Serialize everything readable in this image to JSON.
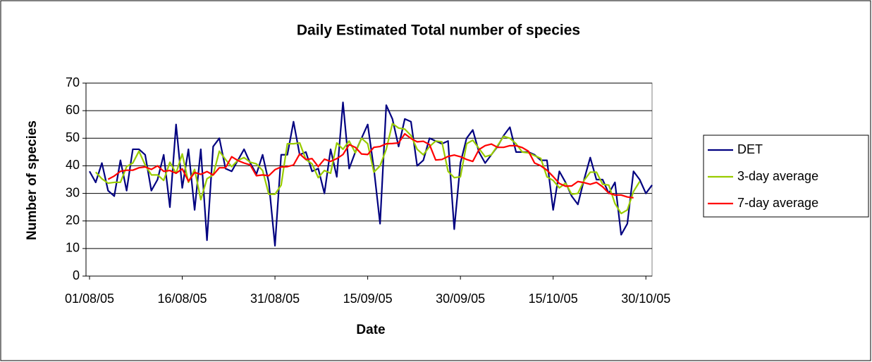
{
  "chart_data": {
    "type": "line",
    "title": "Daily Estimated Total number of species",
    "x_label": "Date",
    "y_label": "Number of species",
    "x": [
      "01/08/05",
      "02/08/05",
      "03/08/05",
      "04/08/05",
      "05/08/05",
      "06/08/05",
      "07/08/05",
      "08/08/05",
      "09/08/05",
      "10/08/05",
      "11/08/05",
      "12/08/05",
      "13/08/05",
      "14/08/05",
      "15/08/05",
      "16/08/05",
      "17/08/05",
      "18/08/05",
      "19/08/05",
      "20/08/05",
      "21/08/05",
      "22/08/05",
      "23/08/05",
      "24/08/05",
      "25/08/05",
      "26/08/05",
      "27/08/05",
      "28/08/05",
      "29/08/05",
      "30/08/05",
      "31/08/05",
      "01/09/05",
      "02/09/05",
      "03/09/05",
      "04/09/05",
      "05/09/05",
      "06/09/05",
      "07/09/05",
      "08/09/05",
      "09/09/05",
      "10/09/05",
      "11/09/05",
      "12/09/05",
      "13/09/05",
      "14/09/05",
      "15/09/05",
      "16/09/05",
      "17/09/05",
      "18/09/05",
      "19/09/05",
      "20/09/05",
      "21/09/05",
      "22/09/05",
      "23/09/05",
      "24/09/05",
      "25/09/05",
      "26/09/05",
      "27/09/05",
      "28/09/05",
      "29/09/05",
      "30/09/05",
      "01/10/05",
      "02/10/05",
      "03/10/05",
      "04/10/05",
      "05/10/05",
      "06/10/05",
      "07/10/05",
      "08/10/05",
      "09/10/05",
      "10/10/05",
      "11/10/05",
      "12/10/05",
      "13/10/05",
      "14/10/05",
      "15/10/05",
      "16/10/05",
      "17/10/05",
      "18/10/05",
      "19/10/05",
      "20/10/05",
      "21/10/05",
      "22/10/05",
      "23/10/05",
      "24/10/05",
      "25/10/05",
      "26/10/05",
      "27/10/05",
      "28/10/05",
      "29/10/05",
      "30/10/05",
      "31/10/05"
    ],
    "series": [
      {
        "name": "DET",
        "color": "#000080",
        "values": [
          38,
          34,
          41,
          31,
          29,
          42,
          31,
          46,
          46,
          44,
          31,
          35,
          44,
          25,
          55,
          32,
          46,
          24,
          46,
          13,
          47,
          50,
          39,
          38,
          42,
          46,
          41,
          37,
          44,
          34,
          11,
          44,
          44,
          56,
          44,
          45,
          38,
          39,
          30,
          46,
          36,
          63,
          39,
          45,
          50,
          55,
          39,
          19,
          62,
          57,
          47,
          57,
          56,
          40,
          42,
          50,
          49,
          48,
          49,
          17,
          41,
          50,
          53,
          45,
          41,
          44,
          47,
          51,
          54,
          45,
          45,
          45,
          44,
          42,
          42,
          24,
          38,
          34,
          29,
          26,
          35,
          43,
          35,
          35,
          30,
          34,
          15,
          19,
          38,
          35,
          30,
          33
        ]
      },
      {
        "name": "3-day average",
        "color": "#99cc00",
        "values": [
          null,
          37.7,
          35.3,
          33.7,
          34,
          34,
          39.7,
          41,
          45.3,
          40.3,
          36.7,
          36.7,
          34.7,
          41.3,
          37.3,
          44.3,
          34,
          38.7,
          27.7,
          35.3,
          36.7,
          45.3,
          42.3,
          39.7,
          42,
          43,
          41.3,
          40.7,
          38.3,
          29.7,
          29.7,
          33,
          48,
          48,
          48.3,
          42.3,
          40.7,
          35.7,
          38.3,
          37.3,
          48.3,
          46,
          49,
          44.7,
          50,
          48,
          37.7,
          40,
          46,
          55.3,
          53.7,
          53.3,
          51,
          46,
          44,
          47,
          49,
          48.7,
          38,
          35.7,
          36,
          48,
          49.3,
          46.3,
          43.3,
          44,
          47.3,
          50.7,
          50,
          48,
          45,
          44.7,
          43.7,
          42.7,
          36,
          34.7,
          32,
          33.7,
          29.7,
          30,
          34.7,
          37.7,
          37.7,
          33.3,
          33,
          26.3,
          22.7,
          24,
          30.7,
          34.3,
          null,
          null
        ]
      },
      {
        "name": "7-day average",
        "color": "#ff0000",
        "values": [
          null,
          null,
          null,
          35.1,
          36.3,
          38,
          38.4,
          38.4,
          39.3,
          39.6,
          38.7,
          40,
          38,
          38.3,
          37.3,
          38.9,
          34.4,
          37.6,
          36.9,
          37.9,
          36.7,
          39.3,
          39.3,
          43.3,
          41.9,
          41,
          40.3,
          36.4,
          36.7,
          36.4,
          38.6,
          39.6,
          39.7,
          40.3,
          44.3,
          42.3,
          42.6,
          39.7,
          42.4,
          41.6,
          42.6,
          44.1,
          47.7,
          46.7,
          44.3,
          44.1,
          46.7,
          47,
          48,
          48.1,
          48.3,
          51.6,
          49.9,
          48.7,
          48.9,
          47.7,
          42.1,
          42.3,
          43.4,
          43.9,
          43.3,
          42.3,
          41.6,
          45.9,
          47.3,
          47.9,
          46.7,
          46.7,
          47.3,
          47.3,
          46.6,
          45.3,
          41,
          40,
          38.4,
          36.1,
          33.6,
          32.6,
          32.7,
          34.3,
          33.9,
          33.3,
          34,
          32.4,
          30.1,
          29.4,
          29.4,
          28.7,
          28.4,
          null,
          null,
          null
        ]
      }
    ],
    "xlim": [
      "01/08/05",
      "31/10/05"
    ],
    "xticks": [
      "01/08/05",
      "16/08/05",
      "31/08/05",
      "15/09/05",
      "30/09/05",
      "15/10/05",
      "30/10/05"
    ],
    "ylim": [
      0,
      70
    ],
    "yticks": [
      0,
      10,
      20,
      30,
      40,
      50,
      60,
      70
    ],
    "grid": true,
    "legend": "right"
  }
}
